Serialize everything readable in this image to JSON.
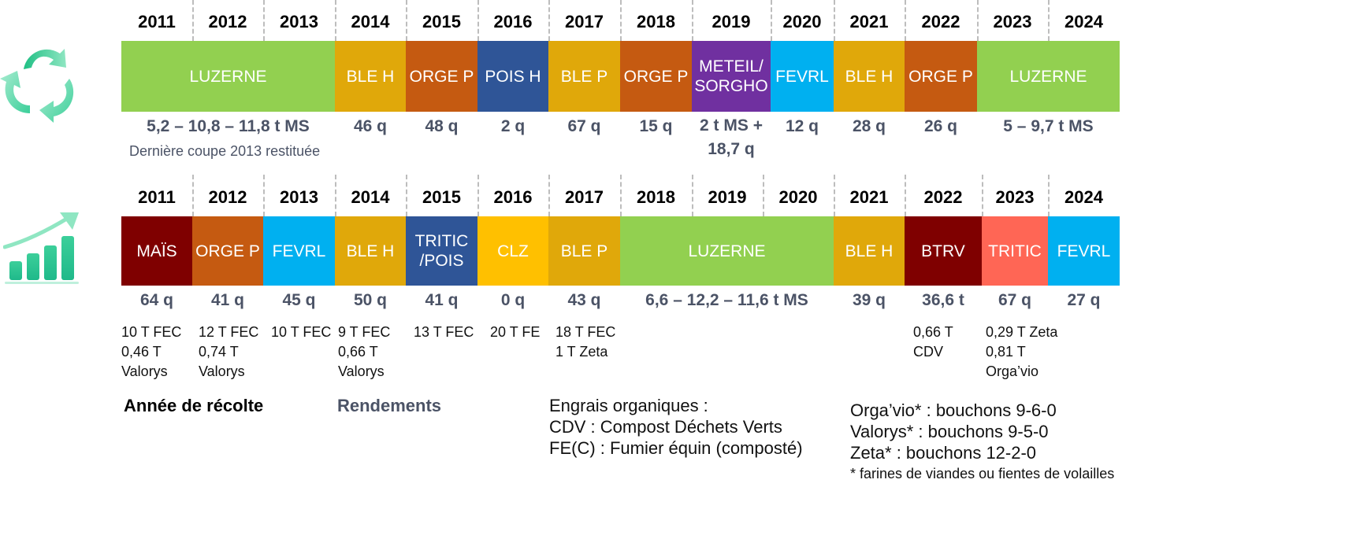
{
  "top_band": {
    "years": [
      "2011",
      "2012",
      "2013",
      "2014",
      "2015",
      "2016",
      "2017",
      "2018",
      "2019",
      "2020",
      "2021",
      "2022",
      "2023",
      "2024"
    ],
    "crops": [
      {
        "label": "LUZERNE",
        "color": "#92d050"
      },
      {
        "label": "BLE H",
        "color": "#e0a80a"
      },
      {
        "label": "ORGE P",
        "color": "#c55a11"
      },
      {
        "label": "POIS H",
        "color": "#2f5597"
      },
      {
        "label": "BLE P",
        "color": "#e0a80a"
      },
      {
        "label": "ORGE P",
        "color": "#c55a11"
      },
      {
        "label": "METEIL/\nSORGHO",
        "color": "#7030a0"
      },
      {
        "label": "FEVRL",
        "color": "#00b0f0"
      },
      {
        "label": "BLE H",
        "color": "#e0a80a"
      },
      {
        "label": "ORGE P",
        "color": "#c55a11"
      },
      {
        "label": "LUZERNE",
        "color": "#92d050"
      }
    ],
    "yields": [
      "5,2 – 10,8 – 11,8 t MS",
      "46 q",
      "48 q",
      "2 q",
      "67 q",
      "15 q",
      "2 t MS +\n18,7 q",
      "12 q",
      "28 q",
      "26 q",
      "5 – 9,7 t MS"
    ],
    "yield_note": "Dernière coupe 2013 restituée",
    "icon": "recycle-icon"
  },
  "bottom_band": {
    "years": [
      "2011",
      "2012",
      "2013",
      "2014",
      "2015",
      "2016",
      "2017",
      "2018",
      "2019",
      "2020",
      "2021",
      "2022",
      "2023",
      "2024"
    ],
    "crops": [
      {
        "label": "MAÏS",
        "color": "#7f0000"
      },
      {
        "label": "ORGE P",
        "color": "#c55a11"
      },
      {
        "label": "FEVRL",
        "color": "#00b0f0"
      },
      {
        "label": "BLE H",
        "color": "#e0a80a"
      },
      {
        "label": "TRITIC\n/POIS",
        "color": "#2f5597"
      },
      {
        "label": "CLZ",
        "color": "#ffc000"
      },
      {
        "label": "BLE P",
        "color": "#e0a80a"
      },
      {
        "label": "LUZERNE",
        "color": "#92d050"
      },
      {
        "label": "BLE H",
        "color": "#e0a80a"
      },
      {
        "label": "BTRV",
        "color": "#7f0000"
      },
      {
        "label": "TRITIC",
        "color": "#ff6655"
      },
      {
        "label": "FEVRL",
        "color": "#00b0f0"
      }
    ],
    "yields": [
      "64 q",
      "41 q",
      "45 q",
      "50 q",
      "41 q",
      "0 q",
      "43 q",
      "6,6 – 12,2 – 11,6 t MS",
      "39 q",
      "36,6 t",
      "67 q",
      "27 q"
    ],
    "fertilizers": [
      "10 T FEC\n0,46 T\nValorys",
      "12 T FEC\n0,74 T\nValorys",
      "10 T FEC",
      "9 T FEC\n0,66 T\nValorys",
      "13 T FEC",
      "20 T FE",
      "18 T FEC\n1 T Zeta",
      "0,66 T\nCDV",
      "0,29 T Zeta\n0,81 T\nOrga’vio"
    ],
    "icon": "growth-chart-icon"
  },
  "legend": {
    "harvest_year": "Année de récolte",
    "yields": "Rendements",
    "organic_fertilizers": "Engrais organiques :\nCDV : Compost Déchets Verts\nFE(C) : Fumier équin (composté)",
    "products": "Orga’vio* : bouchons 9-6-0\nValorys* : bouchons 9-5-0\nZeta* : bouchons 12-2-0",
    "footnote": "* farines de viandes ou fientes de volailles"
  },
  "colors": {
    "year_text": "#000000",
    "yield_text": "#4b5366",
    "separator": "#bdbdbd",
    "icon_green": "#3ccf9a"
  }
}
